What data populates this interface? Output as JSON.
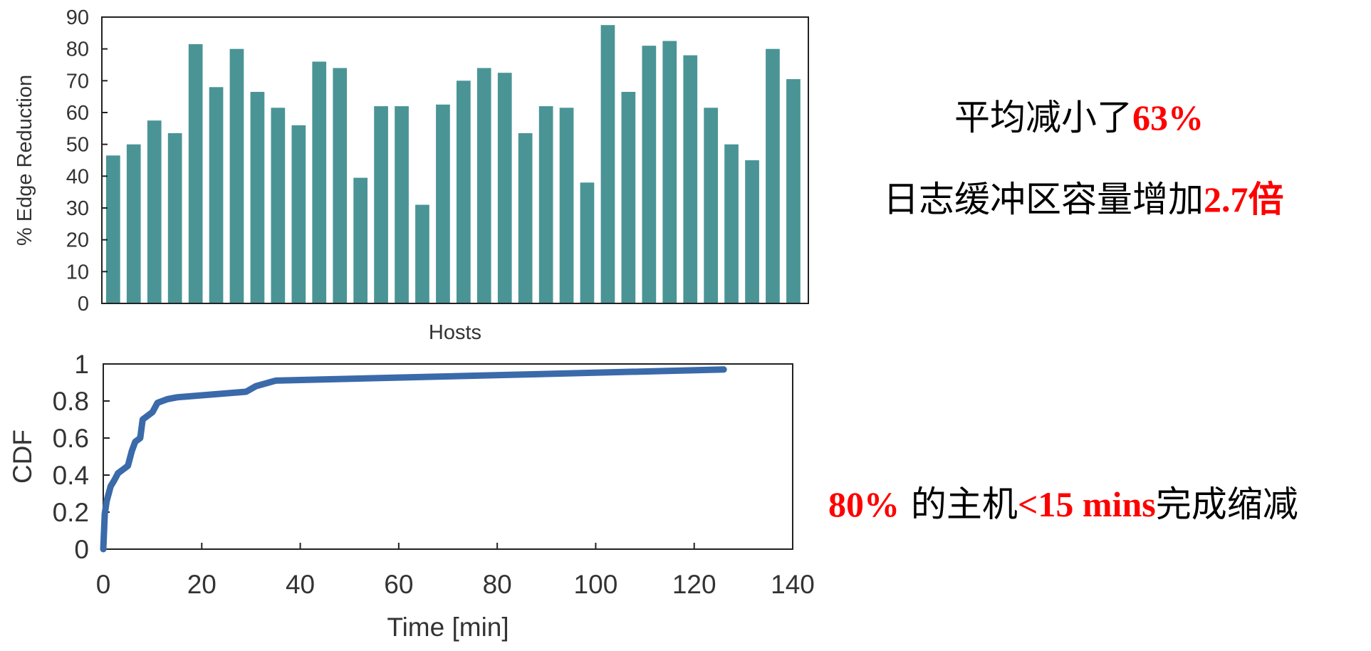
{
  "chart_data": [
    {
      "type": "bar",
      "xlabel": "Hosts",
      "ylabel": "% Edge Reduction",
      "ylim": [
        0,
        90
      ],
      "yticks": [
        0,
        10,
        20,
        30,
        40,
        50,
        60,
        70,
        80,
        90
      ],
      "values": [
        46.5,
        50,
        57.5,
        53.5,
        81.5,
        68,
        80,
        66.5,
        61.5,
        56,
        76,
        74,
        39.5,
        62,
        62,
        31,
        62.5,
        70,
        74,
        72.5,
        53.5,
        62,
        61.5,
        38,
        87.5,
        66.5,
        81,
        82.5,
        78,
        61.5,
        50,
        45,
        80,
        70.5
      ],
      "color": "#4a9496",
      "grid": false
    },
    {
      "type": "line",
      "xlabel": "Time [min]",
      "ylabel": "CDF",
      "xlim": [
        0,
        140
      ],
      "ylim": [
        0,
        1
      ],
      "xticks": [
        0,
        20,
        40,
        60,
        80,
        100,
        120,
        140
      ],
      "yticks": [
        "0",
        "0.2",
        "0.4",
        "0.6",
        "0.8",
        "1"
      ],
      "x": [
        0,
        0.3,
        0.7,
        1.5,
        2.2,
        3,
        4,
        5,
        5.8,
        6.5,
        7.5,
        8,
        9,
        10,
        11,
        13,
        15,
        29,
        31,
        35,
        126
      ],
      "y": [
        0,
        0.19,
        0.26,
        0.34,
        0.37,
        0.41,
        0.43,
        0.45,
        0.53,
        0.58,
        0.6,
        0.7,
        0.72,
        0.74,
        0.79,
        0.81,
        0.82,
        0.85,
        0.88,
        0.91,
        0.97
      ],
      "color": "#3a6aa9",
      "grid": false
    }
  ],
  "annotations": {
    "line1": {
      "text": "平均减小了",
      "highlight": "63%"
    },
    "line2": {
      "text": "日志缓冲区容量增加",
      "highlight": "2.7倍"
    },
    "line3": {
      "highlight_a": "80%",
      "text_a": " 的主机",
      "highlight_b": "<15 mins",
      "text_b": "完成缩减"
    }
  }
}
